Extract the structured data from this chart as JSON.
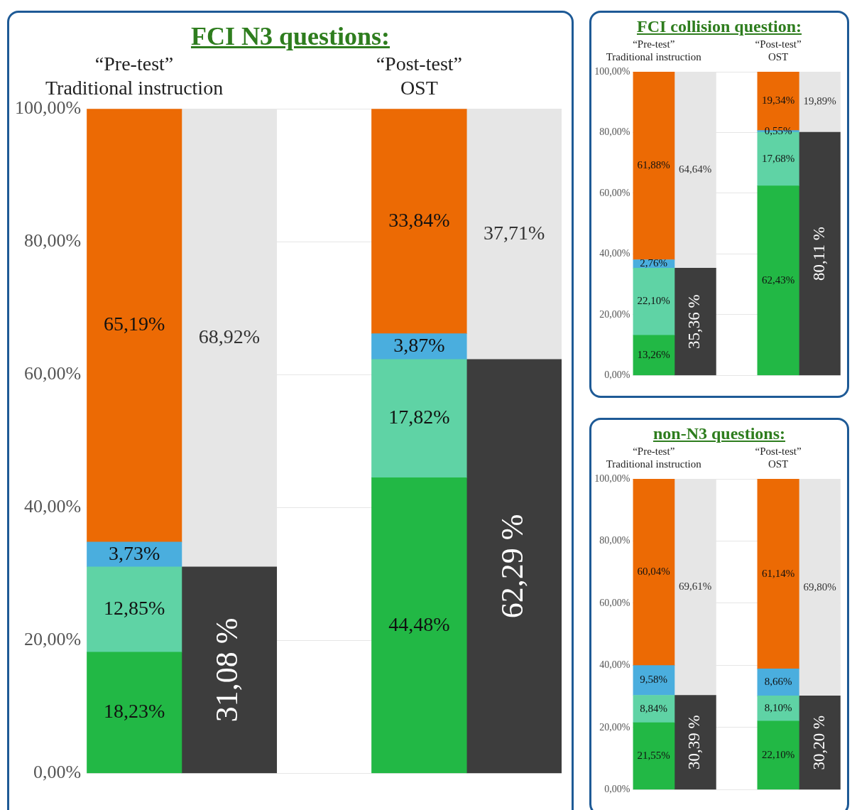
{
  "chart_data": [
    {
      "type": "bar",
      "title": "FCI N3 questions:",
      "stacked": true,
      "grid": "y",
      "categories": [
        "“Pre-test”\nTraditional instruction",
        null,
        null,
        "“Post-test”\nOST",
        null
      ],
      "ylim": [
        0,
        100
      ],
      "yticks": [
        {
          "value": 0,
          "label": "0,00%"
        },
        {
          "value": 20,
          "label": "20,00%"
        },
        {
          "value": 40,
          "label": "40,00%"
        },
        {
          "value": 60,
          "label": "60,00%"
        },
        {
          "value": 80,
          "label": "80,00%"
        },
        {
          "value": 100,
          "label": "100,00%"
        }
      ],
      "series": [
        {
          "color": "#22b845",
          "values": [
            18.23,
            null,
            null,
            44.48,
            null
          ],
          "value_labels": [
            "18,23%",
            null,
            null,
            "44,48%",
            null
          ]
        },
        {
          "color": "#5fd3a5",
          "values": [
            12.85,
            null,
            null,
            17.82,
            null
          ],
          "value_labels": [
            "12,85%",
            null,
            null,
            "17,82%",
            null
          ]
        },
        {
          "color": "#4aaede",
          "values": [
            3.73,
            null,
            null,
            3.87,
            null
          ],
          "value_labels": [
            "3,73%",
            null,
            null,
            "3,87%",
            null
          ]
        },
        {
          "color": "#ec6a04",
          "values": [
            65.19,
            null,
            null,
            33.84,
            null
          ],
          "value_labels": [
            "65,19%",
            null,
            null,
            "33,84%",
            null
          ]
        },
        {
          "color": "#3d3d3d",
          "values": [
            null,
            31.08,
            null,
            null,
            62.29
          ],
          "value_labels": [
            null,
            "31,08 %",
            null,
            null,
            "62,29 %"
          ]
        },
        {
          "color": "#e6e6e6",
          "values": [
            null,
            68.92,
            null,
            null,
            37.71
          ],
          "value_labels": [
            null,
            "68,92%",
            null,
            null,
            "37,71%"
          ]
        }
      ]
    },
    {
      "type": "bar",
      "title": "FCI collision question:",
      "stacked": true,
      "grid": "y",
      "categories": [
        "“Pre-test”\nTraditional instruction",
        null,
        null,
        "“Post-test”\nOST",
        null
      ],
      "ylim": [
        0,
        100
      ],
      "yticks": [
        {
          "value": 0,
          "label": "0,00%"
        },
        {
          "value": 20,
          "label": "20,00%"
        },
        {
          "value": 40,
          "label": "40,00%"
        },
        {
          "value": 60,
          "label": "60,00%"
        },
        {
          "value": 80,
          "label": "80,00%"
        },
        {
          "value": 100,
          "label": "100,00%"
        }
      ],
      "series": [
        {
          "color": "#22b845",
          "values": [
            13.26,
            null,
            null,
            62.43,
            null
          ],
          "value_labels": [
            "13,26%",
            null,
            null,
            "62,43%",
            null
          ]
        },
        {
          "color": "#5fd3a5",
          "values": [
            22.1,
            null,
            null,
            17.68,
            null
          ],
          "value_labels": [
            "22,10%",
            null,
            null,
            "17,68%",
            null
          ]
        },
        {
          "color": "#4aaede",
          "values": [
            2.76,
            null,
            null,
            0.55,
            null
          ],
          "value_labels": [
            "2,76%",
            null,
            null,
            "0,55%",
            null
          ]
        },
        {
          "color": "#ec6a04",
          "values": [
            61.88,
            null,
            null,
            19.34,
            null
          ],
          "value_labels": [
            "61,88%",
            null,
            null,
            "19,34%",
            null
          ]
        },
        {
          "color": "#3d3d3d",
          "values": [
            null,
            35.36,
            null,
            null,
            80.11
          ],
          "value_labels": [
            null,
            "35,36 %",
            null,
            null,
            "80,11 %"
          ]
        },
        {
          "color": "#e6e6e6",
          "values": [
            null,
            64.64,
            null,
            null,
            19.89
          ],
          "value_labels": [
            null,
            "64,64%",
            null,
            null,
            "19,89%"
          ]
        }
      ]
    },
    {
      "type": "bar",
      "title": "non-N3 questions:",
      "stacked": true,
      "grid": "y",
      "categories": [
        "“Pre-test”\nTraditional instruction",
        null,
        null,
        "“Post-test”\nOST",
        null
      ],
      "ylim": [
        0,
        100
      ],
      "yticks": [
        {
          "value": 0,
          "label": "0,00%"
        },
        {
          "value": 20,
          "label": "20,00%"
        },
        {
          "value": 40,
          "label": "40,00%"
        },
        {
          "value": 60,
          "label": "60,00%"
        },
        {
          "value": 80,
          "label": "80,00%"
        },
        {
          "value": 100,
          "label": "100,00%"
        }
      ],
      "series": [
        {
          "color": "#22b845",
          "values": [
            21.55,
            null,
            null,
            22.1,
            null
          ],
          "value_labels": [
            "21,55%",
            null,
            null,
            "22,10%",
            null
          ]
        },
        {
          "color": "#5fd3a5",
          "values": [
            8.84,
            null,
            null,
            8.1,
            null
          ],
          "value_labels": [
            "8,84%",
            null,
            null,
            "8,10%",
            null
          ]
        },
        {
          "color": "#4aaede",
          "values": [
            9.58,
            null,
            null,
            8.66,
            null
          ],
          "value_labels": [
            "9,58%",
            null,
            null,
            "8,66%",
            null
          ]
        },
        {
          "color": "#ec6a04",
          "values": [
            60.04,
            null,
            null,
            61.14,
            null
          ],
          "value_labels": [
            "60,04%",
            null,
            null,
            "61,14%",
            null
          ]
        },
        {
          "color": "#3d3d3d",
          "values": [
            null,
            30.39,
            null,
            null,
            30.2
          ],
          "value_labels": [
            null,
            "30,39 %",
            null,
            null,
            "30,20 %"
          ]
        },
        {
          "color": "#e6e6e6",
          "values": [
            null,
            69.61,
            null,
            null,
            69.8
          ],
          "value_labels": [
            null,
            "69,61%",
            null,
            null,
            "69,80%"
          ]
        }
      ]
    }
  ]
}
